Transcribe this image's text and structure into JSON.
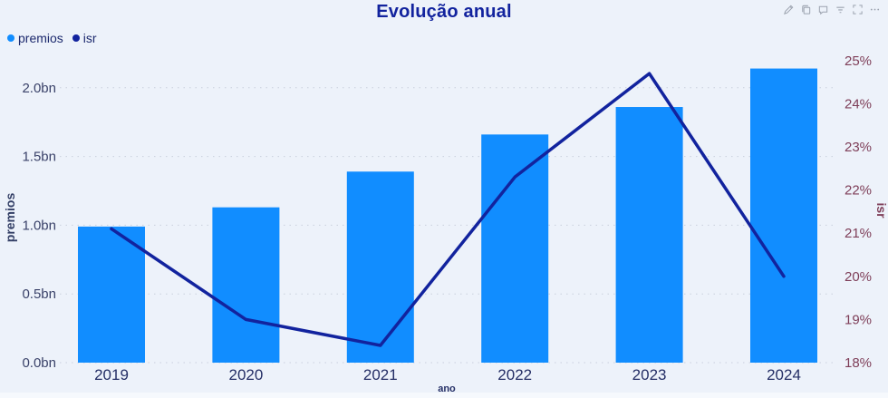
{
  "header": {
    "title": "Evolução anual",
    "toolbar": [
      {
        "name": "edit-icon"
      },
      {
        "name": "copy-icon"
      },
      {
        "name": "comment-icon"
      },
      {
        "name": "filter-icon"
      },
      {
        "name": "focus-mode-icon"
      },
      {
        "name": "more-options-icon"
      }
    ]
  },
  "legend": {
    "items": [
      {
        "label": "premios",
        "color": "#118DFF"
      },
      {
        "label": "isr",
        "color": "#12239E"
      }
    ]
  },
  "chart_data": {
    "type": "combo-bar-line",
    "title": "Evolução anual",
    "categories": [
      "2019",
      "2020",
      "2021",
      "2022",
      "2023",
      "2024"
    ],
    "series": [
      {
        "name": "premios",
        "type": "bar",
        "axis": "left",
        "color": "#118DFF",
        "values": [
          0.99,
          1.13,
          1.39,
          1.66,
          1.86,
          2.14
        ],
        "unit": "bn"
      },
      {
        "name": "isr",
        "type": "line",
        "axis": "right",
        "color": "#12239E",
        "values": [
          21.1,
          19.0,
          18.4,
          22.3,
          24.7,
          20.0
        ],
        "unit": "%"
      }
    ],
    "xlabel": "ano",
    "left_axis": {
      "label": "premios",
      "min": 0,
      "max": 2.0,
      "tick_step": 0.5,
      "ticks": [
        "0.0bn",
        "0.5bn",
        "1.0bn",
        "1.5bn",
        "2.0bn"
      ]
    },
    "right_axis": {
      "label": "isr",
      "min": 18,
      "max": 25,
      "tick_step": 1,
      "ticks": [
        "18%",
        "19%",
        "20%",
        "21%",
        "22%",
        "23%",
        "24%",
        "25%"
      ]
    },
    "grid": "dotted horizontal",
    "legend_position": "top-left"
  },
  "colors": {
    "background": "#edf2fa",
    "bar": "#118DFF",
    "line": "#12239E",
    "title": "#12239E",
    "left_axis_text": "#3a4269",
    "right_axis_text": "#7e3e58",
    "x_axis_text": "#252f66",
    "axis_title_left": "#333f66",
    "axis_title_right": "#7e3e58",
    "gridline": "#c9cfdd",
    "legend_text": "#1d2a6e",
    "toolbar_icon": "#8f96a3"
  }
}
